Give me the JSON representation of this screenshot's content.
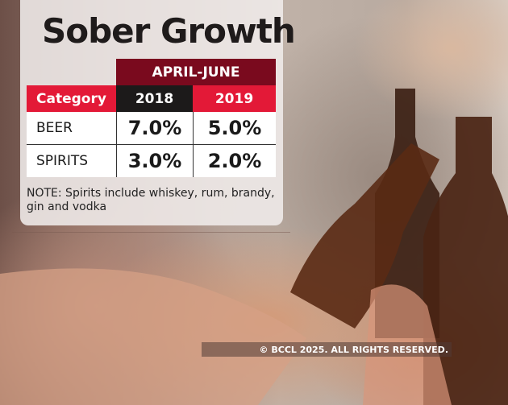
{
  "title": "Sober Growth",
  "chart_data": {
    "type": "table",
    "title": "Sober Growth",
    "period": "APRIL-JUNE",
    "columns": [
      "Category",
      "2018",
      "2019"
    ],
    "rows": [
      {
        "category": "BEER",
        "values": [
          "7.0%",
          "5.0%"
        ]
      },
      {
        "category": "SPIRITS",
        "values": [
          "3.0%",
          "2.0%"
        ]
      }
    ],
    "note": "NOTE: Spirits include whiskey, rum, brandy, gin and vodka"
  },
  "colors": {
    "period_header": "#7a0a1e",
    "red_header": "#e31937",
    "black_header": "#1c1a1a"
  },
  "copyright": "© BCCL 2025. ALL RIGHTS RESERVED."
}
